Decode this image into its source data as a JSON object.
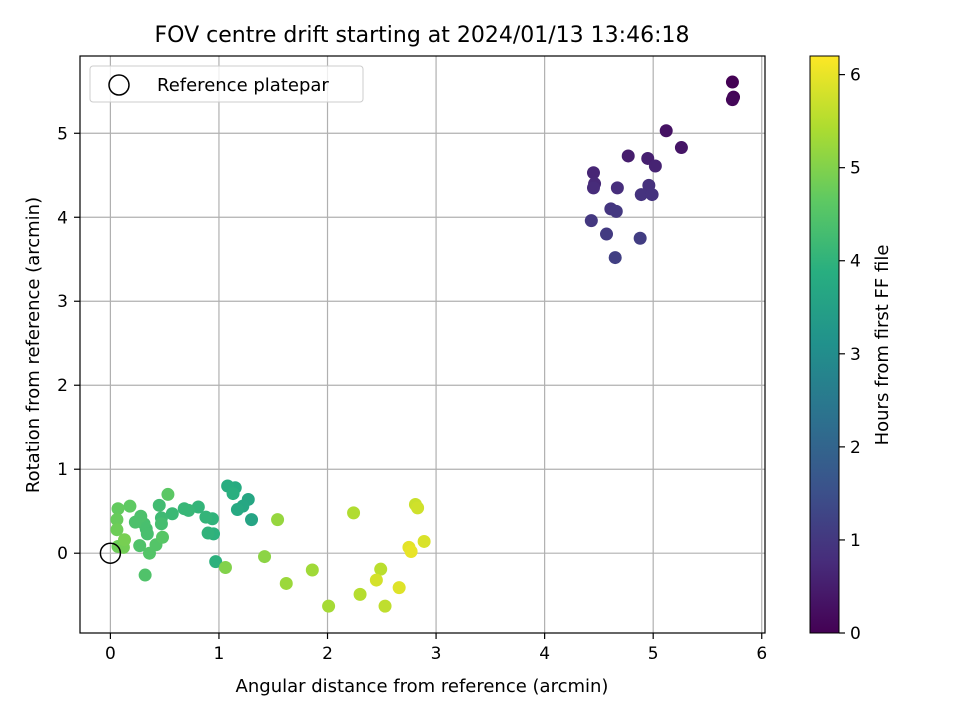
{
  "chart_data": {
    "type": "scatter",
    "title": "FOV centre drift starting at 2024/01/13 13:46:18",
    "xlabel": "Angular distance from reference (arcmin)",
    "ylabel": "Rotation from reference (arcmin)",
    "xlim": [
      -0.28,
      6.03
    ],
    "ylim": [
      -0.95,
      5.92
    ],
    "xticks": [
      0,
      1,
      2,
      3,
      4,
      5,
      6
    ],
    "yticks": [
      0,
      1,
      2,
      3,
      4,
      5
    ],
    "grid": true,
    "legend": {
      "position": "top-left",
      "entries": [
        "Reference platepar"
      ]
    },
    "colorbar": {
      "label": "Hours from first FF file",
      "range": [
        0,
        6.2
      ],
      "ticks": [
        0,
        1,
        2,
        3,
        4,
        5,
        6
      ],
      "colormap": "viridis"
    },
    "reference_point": {
      "x": 0,
      "y": 0
    },
    "points": [
      {
        "x": 5.73,
        "y": 5.61,
        "h": 0.0
      },
      {
        "x": 5.74,
        "y": 5.43,
        "h": 0.05
      },
      {
        "x": 5.73,
        "y": 5.4,
        "h": 0.1
      },
      {
        "x": 5.12,
        "y": 5.03,
        "h": 0.3
      },
      {
        "x": 5.26,
        "y": 4.83,
        "h": 0.35
      },
      {
        "x": 4.77,
        "y": 4.73,
        "h": 0.5
      },
      {
        "x": 4.95,
        "y": 4.7,
        "h": 0.55
      },
      {
        "x": 5.02,
        "y": 4.61,
        "h": 0.6
      },
      {
        "x": 4.45,
        "y": 4.53,
        "h": 0.65
      },
      {
        "x": 4.46,
        "y": 4.4,
        "h": 0.7
      },
      {
        "x": 4.45,
        "y": 4.35,
        "h": 0.75
      },
      {
        "x": 4.67,
        "y": 4.35,
        "h": 0.8
      },
      {
        "x": 4.96,
        "y": 4.38,
        "h": 0.85
      },
      {
        "x": 4.89,
        "y": 4.27,
        "h": 0.9
      },
      {
        "x": 4.99,
        "y": 4.27,
        "h": 0.9
      },
      {
        "x": 4.61,
        "y": 4.1,
        "h": 0.95
      },
      {
        "x": 4.66,
        "y": 4.07,
        "h": 1.0
      },
      {
        "x": 4.43,
        "y": 3.96,
        "h": 1.0
      },
      {
        "x": 4.57,
        "y": 3.8,
        "h": 1.05
      },
      {
        "x": 4.88,
        "y": 3.75,
        "h": 1.1
      },
      {
        "x": 4.65,
        "y": 3.52,
        "h": 1.15
      },
      {
        "x": 1.3,
        "y": 0.4,
        "h": 3.6
      },
      {
        "x": 1.27,
        "y": 0.64,
        "h": 3.65
      },
      {
        "x": 1.22,
        "y": 0.56,
        "h": 3.7
      },
      {
        "x": 1.17,
        "y": 0.52,
        "h": 3.75
      },
      {
        "x": 1.15,
        "y": 0.78,
        "h": 3.8
      },
      {
        "x": 1.08,
        "y": 0.8,
        "h": 3.85
      },
      {
        "x": 1.13,
        "y": 0.71,
        "h": 3.9
      },
      {
        "x": 0.97,
        "y": -0.1,
        "h": 3.95
      },
      {
        "x": 0.95,
        "y": 0.23,
        "h": 3.95
      },
      {
        "x": 0.9,
        "y": 0.24,
        "h": 4.0
      },
      {
        "x": 0.94,
        "y": 0.41,
        "h": 4.0
      },
      {
        "x": 0.88,
        "y": 0.43,
        "h": 4.05
      },
      {
        "x": 0.81,
        "y": 0.55,
        "h": 4.05
      },
      {
        "x": 0.72,
        "y": 0.51,
        "h": 4.1
      },
      {
        "x": 0.68,
        "y": 0.53,
        "h": 4.1
      },
      {
        "x": 0.57,
        "y": 0.47,
        "h": 4.15
      },
      {
        "x": 0.47,
        "y": 0.42,
        "h": 4.2
      },
      {
        "x": 0.45,
        "y": 0.57,
        "h": 4.25
      },
      {
        "x": 0.47,
        "y": 0.35,
        "h": 4.3
      },
      {
        "x": 0.33,
        "y": 0.29,
        "h": 4.3
      },
      {
        "x": 0.31,
        "y": 0.35,
        "h": 4.35
      },
      {
        "x": 0.34,
        "y": 0.23,
        "h": 4.35
      },
      {
        "x": 0.28,
        "y": 0.44,
        "h": 4.4
      },
      {
        "x": 0.23,
        "y": 0.37,
        "h": 4.4
      },
      {
        "x": 0.27,
        "y": 0.09,
        "h": 4.45
      },
      {
        "x": 0.32,
        "y": -0.26,
        "h": 4.45
      },
      {
        "x": 0.36,
        "y": 0.0,
        "h": 4.5
      },
      {
        "x": 0.42,
        "y": 0.1,
        "h": 4.5
      },
      {
        "x": 0.48,
        "y": 0.19,
        "h": 4.55
      },
      {
        "x": 0.53,
        "y": 0.7,
        "h": 4.6
      },
      {
        "x": 0.18,
        "y": 0.56,
        "h": 4.65
      },
      {
        "x": 0.07,
        "y": 0.53,
        "h": 4.7
      },
      {
        "x": 0.06,
        "y": 0.4,
        "h": 4.75
      },
      {
        "x": 0.06,
        "y": 0.28,
        "h": 4.8
      },
      {
        "x": 0.07,
        "y": 0.08,
        "h": 4.8
      },
      {
        "x": 0.12,
        "y": 0.07,
        "h": 4.85
      },
      {
        "x": 0.13,
        "y": 0.16,
        "h": 4.9
      },
      {
        "x": 1.06,
        "y": -0.17,
        "h": 5.0
      },
      {
        "x": 1.42,
        "y": -0.04,
        "h": 5.1
      },
      {
        "x": 1.54,
        "y": 0.4,
        "h": 5.2
      },
      {
        "x": 1.62,
        "y": -0.36,
        "h": 5.25
      },
      {
        "x": 1.86,
        "y": -0.2,
        "h": 5.3
      },
      {
        "x": 2.01,
        "y": -0.63,
        "h": 5.35
      },
      {
        "x": 2.24,
        "y": 0.48,
        "h": 5.45
      },
      {
        "x": 2.3,
        "y": -0.49,
        "h": 5.5
      },
      {
        "x": 2.49,
        "y": -0.19,
        "h": 5.55
      },
      {
        "x": 2.53,
        "y": -0.63,
        "h": 5.6
      },
      {
        "x": 2.45,
        "y": -0.32,
        "h": 5.8
      },
      {
        "x": 2.66,
        "y": -0.41,
        "h": 5.9
      },
      {
        "x": 2.75,
        "y": 0.07,
        "h": 5.95
      },
      {
        "x": 2.77,
        "y": 0.02,
        "h": 6.0
      },
      {
        "x": 2.81,
        "y": 0.58,
        "h": 5.7
      },
      {
        "x": 2.83,
        "y": 0.54,
        "h": 5.75
      },
      {
        "x": 2.89,
        "y": 0.14,
        "h": 5.85
      }
    ]
  }
}
